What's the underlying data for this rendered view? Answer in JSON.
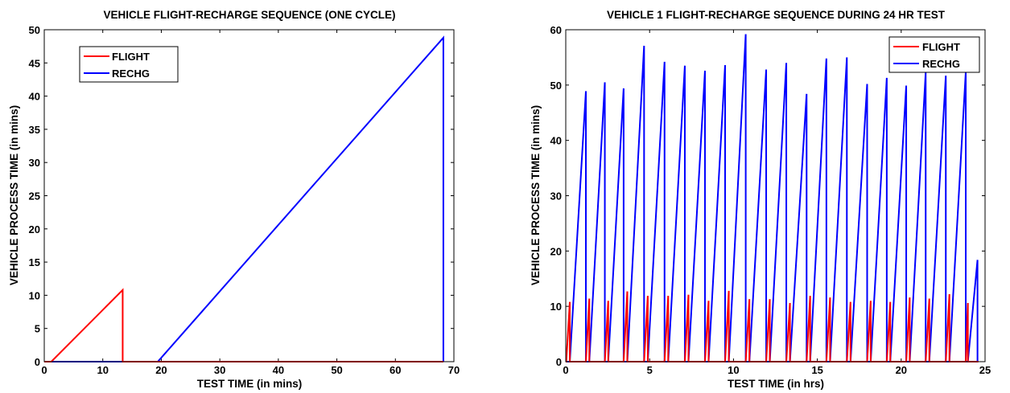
{
  "chart_data": [
    {
      "type": "line",
      "title": "VEHICLE FLIGHT-RECHARGE SEQUENCE (ONE CYCLE)",
      "xlabel": "TEST TIME (in mins)",
      "ylabel": "VEHICLE PROCESS TIME (in mins)",
      "xlim": [
        0,
        70
      ],
      "ylim": [
        0,
        50
      ],
      "xticks": [
        0,
        10,
        20,
        30,
        40,
        50,
        60,
        70
      ],
      "yticks": [
        0,
        5,
        10,
        15,
        20,
        25,
        30,
        35,
        40,
        45,
        50
      ],
      "legend_position": "top-left",
      "grid": false,
      "series": [
        {
          "name": "FLIGHT",
          "color": "#ff0000",
          "x": [
            0,
            1.2,
            13.4,
            13.4,
            68.2
          ],
          "y": [
            0,
            0,
            10.8,
            0,
            0
          ]
        },
        {
          "name": "RECHG",
          "color": "#0000ff",
          "x": [
            0,
            19.4,
            68.2,
            68.2
          ],
          "y": [
            0,
            0,
            48.8,
            0
          ]
        }
      ]
    },
    {
      "type": "line",
      "title": "VEHICLE 1 FLIGHT-RECHARGE SEQUENCE DURING 24 HR TEST",
      "xlabel": "TEST TIME (in hrs)",
      "ylabel": "VEHICLE PROCESS TIME (in mins)",
      "xlim": [
        0,
        25
      ],
      "ylim": [
        0,
        60
      ],
      "xticks": [
        0,
        5,
        10,
        15,
        20,
        25
      ],
      "yticks": [
        0,
        10,
        20,
        30,
        40,
        50,
        60
      ],
      "legend_position": "top-right",
      "grid": false,
      "cycle_start_hrs": [
        0.03,
        1.2,
        2.33,
        3.45,
        4.67,
        5.89,
        7.1,
        8.3,
        9.5,
        10.73,
        11.95,
        13.15,
        14.36,
        15.54,
        16.76,
        17.97,
        19.14,
        20.3,
        21.46,
        22.66,
        23.85
      ],
      "flight_peak_mins": [
        10.8,
        11.4,
        11.0,
        12.7,
        11.9,
        11.9,
        12.1,
        11.0,
        12.8,
        11.3,
        11.3,
        10.6,
        11.9,
        11.6,
        10.8,
        11.0,
        10.8,
        11.6,
        11.4,
        12.2,
        10.6
      ],
      "recharge_peak_mins": [
        48.9,
        50.5,
        49.4,
        57.1,
        54.2,
        53.5,
        52.6,
        53.6,
        59.2,
        52.8,
        54.0,
        48.4,
        54.8,
        55.0,
        50.2,
        51.3,
        49.9,
        52.3,
        51.7,
        52.4,
        18.4
      ],
      "series": [
        {
          "name": "FLIGHT",
          "color": "#ff0000"
        },
        {
          "name": "RECHG",
          "color": "#0000ff"
        }
      ]
    }
  ]
}
